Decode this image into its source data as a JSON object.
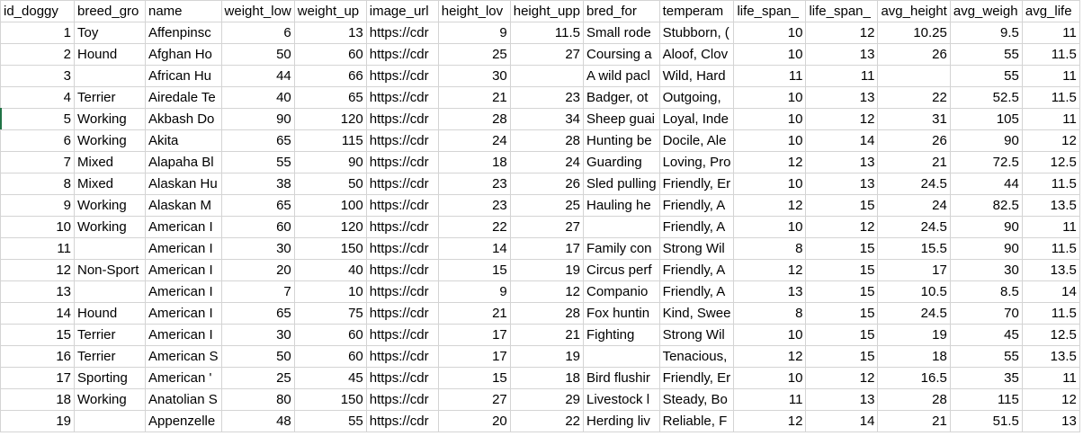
{
  "columns": [
    {
      "label": "id_doggy",
      "align": "num"
    },
    {
      "label": "breed_gro",
      "align": "txt"
    },
    {
      "label": "name",
      "align": "txt"
    },
    {
      "label": "weight_loᴡ",
      "align": "num"
    },
    {
      "label": "weight_up",
      "align": "num"
    },
    {
      "label": "image_url",
      "align": "txt"
    },
    {
      "label": "height_lov",
      "align": "num"
    },
    {
      "label": "height_upp",
      "align": "num"
    },
    {
      "label": "bred_for",
      "align": "txt"
    },
    {
      "label": "temperam",
      "align": "txt"
    },
    {
      "label": "life_span_",
      "align": "num"
    },
    {
      "label": "life_span_",
      "align": "num"
    },
    {
      "label": "avg_height",
      "align": "num"
    },
    {
      "label": "avg_weigh",
      "align": "num"
    },
    {
      "label": "avg_life",
      "align": "num"
    }
  ],
  "rows": [
    [
      "1",
      "Toy",
      "Affenpinsc",
      "6",
      "13",
      "https://cdr",
      "9",
      "11.5",
      "Small rode",
      "Stubborn, (",
      "10",
      "12",
      "10.25",
      "9.5",
      "11"
    ],
    [
      "2",
      "Hound",
      "Afghan Ho",
      "50",
      "60",
      "https://cdr",
      "25",
      "27",
      "Coursing a",
      "Aloof, Clov",
      "10",
      "13",
      "26",
      "55",
      "11.5"
    ],
    [
      "3",
      "",
      "African Hu",
      "44",
      "66",
      "https://cdr",
      "30",
      "",
      "A wild pacl",
      "Wild, Hard",
      "11",
      "11",
      "",
      "55",
      "11"
    ],
    [
      "4",
      "Terrier",
      "Airedale Te",
      "40",
      "65",
      "https://cdr",
      "21",
      "23",
      "Badger, ot",
      "Outgoing, ",
      "10",
      "13",
      "22",
      "52.5",
      "11.5"
    ],
    [
      "5",
      "Working",
      "Akbash Do",
      "90",
      "120",
      "https://cdr",
      "28",
      "34",
      "Sheep guai",
      "Loyal, Inde",
      "10",
      "12",
      "31",
      "105",
      "11"
    ],
    [
      "6",
      "Working",
      "Akita",
      "65",
      "115",
      "https://cdr",
      "24",
      "28",
      "Hunting be",
      "Docile, Ale",
      "10",
      "14",
      "26",
      "90",
      "12"
    ],
    [
      "7",
      "Mixed",
      "Alapaha Bl",
      "55",
      "90",
      "https://cdr",
      "18",
      "24",
      "Guarding",
      "Loving, Pro",
      "12",
      "13",
      "21",
      "72.5",
      "12.5"
    ],
    [
      "8",
      "Mixed",
      "Alaskan Hu",
      "38",
      "50",
      "https://cdr",
      "23",
      "26",
      "Sled pulling",
      "Friendly, Er",
      "10",
      "13",
      "24.5",
      "44",
      "11.5"
    ],
    [
      "9",
      "Working",
      "Alaskan M",
      "65",
      "100",
      "https://cdr",
      "23",
      "25",
      "Hauling he",
      "Friendly, A",
      "12",
      "15",
      "24",
      "82.5",
      "13.5"
    ],
    [
      "10",
      "Working",
      "American I",
      "60",
      "120",
      "https://cdr",
      "22",
      "27",
      "",
      "Friendly, A",
      "10",
      "12",
      "24.5",
      "90",
      "11"
    ],
    [
      "11",
      "",
      "American I",
      "30",
      "150",
      "https://cdr",
      "14",
      "17",
      "Family con",
      "Strong Wil",
      "8",
      "15",
      "15.5",
      "90",
      "11.5"
    ],
    [
      "12",
      "Non-Sport",
      "American I",
      "20",
      "40",
      "https://cdr",
      "15",
      "19",
      "Circus perf",
      "Friendly, A",
      "12",
      "15",
      "17",
      "30",
      "13.5"
    ],
    [
      "13",
      "",
      "American I",
      "7",
      "10",
      "https://cdr",
      "9",
      "12",
      "Companio",
      "Friendly, A",
      "13",
      "15",
      "10.5",
      "8.5",
      "14"
    ],
    [
      "14",
      "Hound",
      "American I",
      "65",
      "75",
      "https://cdr",
      "21",
      "28",
      "Fox huntin",
      "Kind, Swee",
      "8",
      "15",
      "24.5",
      "70",
      "11.5"
    ],
    [
      "15",
      "Terrier",
      "American I",
      "30",
      "60",
      "https://cdr",
      "17",
      "21",
      "Fighting",
      "Strong Wil",
      "10",
      "15",
      "19",
      "45",
      "12.5"
    ],
    [
      "16",
      "Terrier",
      "American S",
      "50",
      "60",
      "https://cdr",
      "17",
      "19",
      "",
      "Tenacious,",
      "12",
      "15",
      "18",
      "55",
      "13.5"
    ],
    [
      "17",
      "Sporting",
      "American '",
      "25",
      "45",
      "https://cdr",
      "15",
      "18",
      "Bird flushir",
      "Friendly, Er",
      "10",
      "12",
      "16.5",
      "35",
      "11"
    ],
    [
      "18",
      "Working",
      "Anatolian S",
      "80",
      "150",
      "https://cdr",
      "27",
      "29",
      "Livestock l",
      "Steady, Bo",
      "11",
      "13",
      "28",
      "115",
      "12"
    ],
    [
      "19",
      "",
      "Appenzelle",
      "48",
      "55",
      "https://cdr",
      "20",
      "22",
      "Herding liv",
      "Reliable, F",
      "12",
      "14",
      "21",
      "51.5",
      "13"
    ]
  ]
}
